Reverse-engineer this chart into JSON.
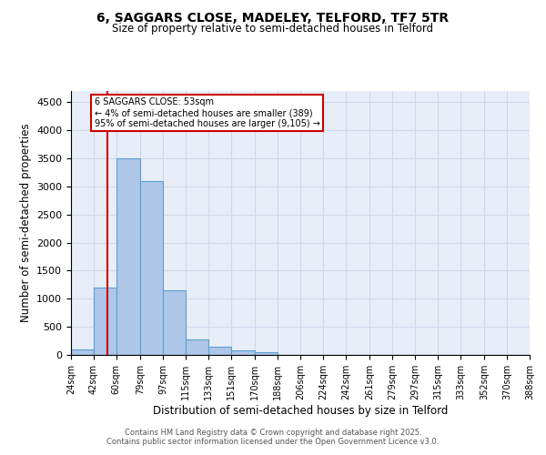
{
  "title_line1": "6, SAGGARS CLOSE, MADELEY, TELFORD, TF7 5TR",
  "title_line2": "Size of property relative to semi-detached houses in Telford",
  "xlabel": "Distribution of semi-detached houses by size in Telford",
  "ylabel": "Number of semi-detached properties",
  "bar_edges": [
    24,
    42,
    60,
    79,
    97,
    115,
    133,
    151,
    170,
    188,
    206,
    224,
    242,
    261,
    279,
    297,
    315,
    333,
    352,
    370,
    388
  ],
  "bar_heights": [
    100,
    1200,
    3500,
    3100,
    1150,
    270,
    150,
    80,
    55,
    0,
    0,
    0,
    0,
    0,
    0,
    0,
    0,
    0,
    0,
    0
  ],
  "bar_color": "#aec6e8",
  "bar_edge_color": "#5a9fd4",
  "property_line_x": 53,
  "property_line_color": "#cc0000",
  "annotation_title": "6 SAGGARS CLOSE: 53sqm",
  "annotation_line1": "← 4% of semi-detached houses are smaller (389)",
  "annotation_line2": "95% of semi-detached houses are larger (9,105) →",
  "annotation_box_color": "#cc0000",
  "ylim": [
    0,
    4700
  ],
  "yticks": [
    0,
    500,
    1000,
    1500,
    2000,
    2500,
    3000,
    3500,
    4000,
    4500
  ],
  "tick_labels": [
    "24sqm",
    "42sqm",
    "60sqm",
    "79sqm",
    "97sqm",
    "115sqm",
    "133sqm",
    "151sqm",
    "170sqm",
    "188sqm",
    "206sqm",
    "224sqm",
    "242sqm",
    "261sqm",
    "279sqm",
    "297sqm",
    "315sqm",
    "333sqm",
    "352sqm",
    "370sqm",
    "388sqm"
  ],
  "grid_color": "#d0d8e8",
  "bg_color": "#e8eef8",
  "footer_line1": "Contains HM Land Registry data © Crown copyright and database right 2025.",
  "footer_line2": "Contains public sector information licensed under the Open Government Licence v3.0."
}
